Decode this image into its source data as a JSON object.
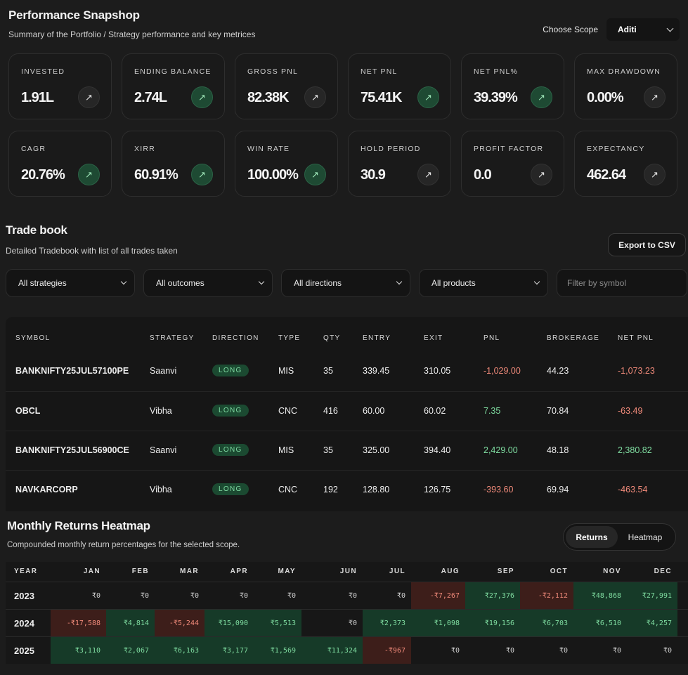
{
  "snapshot": {
    "title": "Performance Snapshop",
    "subtitle": "Summary of the Portfolio / Strategy performance and key metrices",
    "scope_label": "Choose Scope",
    "scope_value": "Aditi",
    "cards": [
      {
        "label": "INVESTED",
        "value": "1.91L",
        "highlight": false
      },
      {
        "label": "ENDING BALANCE",
        "value": "2.74L",
        "highlight": true
      },
      {
        "label": "GROSS PNL",
        "value": "82.38K",
        "highlight": false
      },
      {
        "label": "NET PNL",
        "value": "75.41K",
        "highlight": true
      },
      {
        "label": "NET PNL%",
        "value": "39.39%",
        "highlight": true
      },
      {
        "label": "MAX DRAWDOWN",
        "value": "0.00%",
        "highlight": false
      },
      {
        "label": "CAGR",
        "value": "20.76%",
        "highlight": true
      },
      {
        "label": "XIRR",
        "value": "60.91%",
        "highlight": true
      },
      {
        "label": "WIN RATE",
        "value": "100.00%",
        "highlight": true
      },
      {
        "label": "HOLD PERIOD",
        "value": "30.9",
        "highlight": false
      },
      {
        "label": "PROFIT FACTOR",
        "value": "0.0",
        "highlight": false
      },
      {
        "label": "EXPECTANCY",
        "value": "462.64",
        "highlight": false
      }
    ],
    "arrow_glyph": "↗"
  },
  "tradebook": {
    "title": "Trade book",
    "subtitle": "Detailed Tradebook with list of all trades taken",
    "export_label": "Export to CSV",
    "filters": [
      "All strategies",
      "All outcomes",
      "All directions",
      "All products"
    ],
    "symbol_placeholder": "Filter by symbol",
    "columns": [
      "SYMBOL",
      "STRATEGY",
      "DIRECTION",
      "TYPE",
      "QTY",
      "ENTRY",
      "EXIT",
      "PNL",
      "BROKERAGE",
      "NET PNL"
    ],
    "rows": [
      {
        "symbol": "BANKNIFTY25JUL57100PE",
        "strategy": "Saanvi",
        "direction": "LONG",
        "type": "MIS",
        "qty": "35",
        "entry": "339.45",
        "exit": "310.05",
        "pnl": "-1,029.00",
        "brokerage": "44.23",
        "net_pnl": "-1,073.23",
        "pnl_sign": "neg",
        "net_sign": "neg"
      },
      {
        "symbol": "OBCL",
        "strategy": "Vibha",
        "direction": "LONG",
        "type": "CNC",
        "qty": "416",
        "entry": "60.00",
        "exit": "60.02",
        "pnl": "7.35",
        "brokerage": "70.84",
        "net_pnl": "-63.49",
        "pnl_sign": "pos",
        "net_sign": "neg"
      },
      {
        "symbol": "BANKNIFTY25JUL56900CE",
        "strategy": "Saanvi",
        "direction": "LONG",
        "type": "MIS",
        "qty": "35",
        "entry": "325.00",
        "exit": "394.40",
        "pnl": "2,429.00",
        "brokerage": "48.18",
        "net_pnl": "2,380.82",
        "pnl_sign": "pos",
        "net_sign": "pos"
      },
      {
        "symbol": "NAVKARCORP",
        "strategy": "Vibha",
        "direction": "LONG",
        "type": "CNC",
        "qty": "192",
        "entry": "128.80",
        "exit": "126.75",
        "pnl": "-393.60",
        "brokerage": "69.94",
        "net_pnl": "-463.54",
        "pnl_sign": "neg",
        "net_sign": "neg"
      }
    ]
  },
  "monthly": {
    "title": "Monthly Returns Heatmap",
    "subtitle": "Compounded monthly return percentages for the selected scope.",
    "toggle_active": "Returns",
    "toggle_inactive": "Heatmap",
    "columns": [
      "YEAR",
      "JAN",
      "FEB",
      "MAR",
      "APR",
      "MAY",
      "JUN",
      "JUL",
      "AUG",
      "SEP",
      "OCT",
      "NOV",
      "DEC"
    ],
    "rows": [
      {
        "year": "2023",
        "cells": [
          {
            "text": "₹0",
            "value": 0
          },
          {
            "text": "₹0",
            "value": 0
          },
          {
            "text": "₹0",
            "value": 0
          },
          {
            "text": "₹0",
            "value": 0
          },
          {
            "text": "₹0",
            "value": 0
          },
          {
            "text": "₹0",
            "value": 0
          },
          {
            "text": "₹0",
            "value": 0
          },
          {
            "text": "-₹7,267",
            "value": -7267
          },
          {
            "text": "₹27,376",
            "value": 27376
          },
          {
            "text": "-₹2,112",
            "value": -2112
          },
          {
            "text": "₹48,868",
            "value": 48868
          },
          {
            "text": "₹27,991",
            "value": 27991
          }
        ]
      },
      {
        "year": "2024",
        "cells": [
          {
            "text": "-₹17,588",
            "value": -17588
          },
          {
            "text": "₹4,814",
            "value": 4814
          },
          {
            "text": "-₹5,244",
            "value": -5244
          },
          {
            "text": "₹15,090",
            "value": 15090
          },
          {
            "text": "₹5,513",
            "value": 5513
          },
          {
            "text": "₹0",
            "value": 0
          },
          {
            "text": "₹2,373",
            "value": 2373
          },
          {
            "text": "₹1,098",
            "value": 1098
          },
          {
            "text": "₹19,156",
            "value": 19156
          },
          {
            "text": "₹6,703",
            "value": 6703
          },
          {
            "text": "₹6,510",
            "value": 6510
          },
          {
            "text": "₹4,257",
            "value": 4257
          }
        ]
      },
      {
        "year": "2025",
        "cells": [
          {
            "text": "₹3,110",
            "value": 3110
          },
          {
            "text": "₹2,067",
            "value": 2067
          },
          {
            "text": "₹6,163",
            "value": 6163
          },
          {
            "text": "₹3,177",
            "value": 3177
          },
          {
            "text": "₹1,569",
            "value": 1569
          },
          {
            "text": "₹11,324",
            "value": 11324
          },
          {
            "text": "-₹967",
            "value": -967
          },
          {
            "text": "₹0",
            "value": 0
          },
          {
            "text": "₹0",
            "value": 0
          },
          {
            "text": "₹0",
            "value": 0
          },
          {
            "text": "₹0",
            "value": 0
          },
          {
            "text": "₹0",
            "value": 0
          }
        ]
      }
    ]
  },
  "colors": {
    "positive": "#7fdca0",
    "negative": "#f08a7a",
    "heat_positive": "#163a28",
    "heat_negative": "#3d1e1a"
  }
}
